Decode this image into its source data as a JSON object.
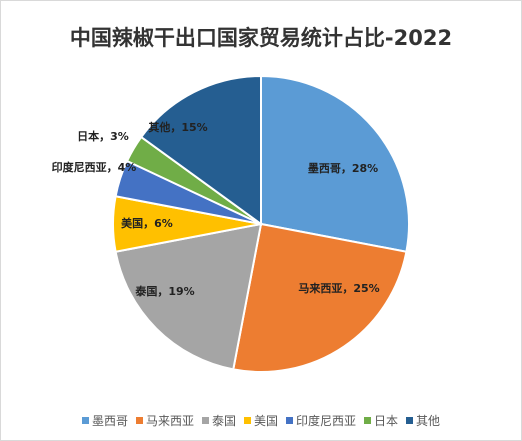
{
  "chart_data": {
    "type": "pie",
    "title": "中国辣椒干出口国家贸易统计占比-2022",
    "slices": [
      {
        "name": "墨西哥",
        "value": 28,
        "label": "墨西哥，28%",
        "color": "#5b9bd5"
      },
      {
        "name": "马来西亚",
        "value": 25,
        "label": "马来西亚，25%",
        "color": "#ed7d31"
      },
      {
        "name": "泰国",
        "value": 19,
        "label": "泰国，19%",
        "color": "#a5a5a5"
      },
      {
        "name": "美国",
        "value": 6,
        "label": "美国，6%",
        "color": "#ffc000"
      },
      {
        "name": "印度尼西亚",
        "value": 4,
        "label": "印度尼西亚，4%",
        "color": "#4472c4"
      },
      {
        "name": "日本",
        "value": 3,
        "label": "日本，3%",
        "color": "#70ad47"
      },
      {
        "name": "其他",
        "value": 15,
        "label": "其他，15%",
        "color": "#255e91"
      }
    ],
    "legend_position": "bottom"
  }
}
